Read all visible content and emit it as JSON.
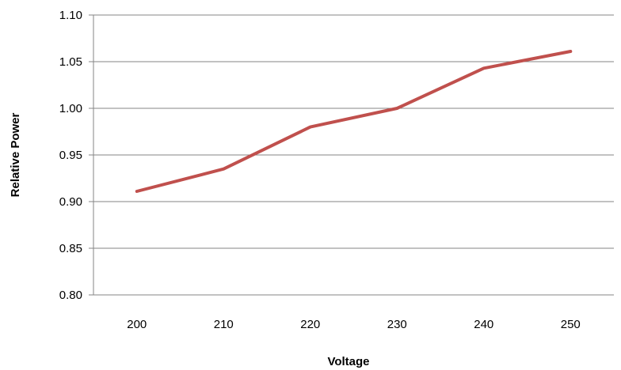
{
  "chart_data": {
    "type": "line",
    "title": "",
    "xlabel": "Voltage",
    "ylabel": "Relative Power",
    "categories": [
      "200",
      "210",
      "220",
      "230",
      "240",
      "250"
    ],
    "series": [
      {
        "values": [
          0.911,
          0.935,
          0.98,
          1.0,
          1.043,
          1.061
        ],
        "color": "#c0504d"
      }
    ],
    "ylim": [
      0.8,
      1.1
    ],
    "yticks": [
      "0.80",
      "0.85",
      "0.90",
      "0.95",
      "1.00",
      "1.05",
      "1.10"
    ],
    "grid": true,
    "legend": "none"
  }
}
